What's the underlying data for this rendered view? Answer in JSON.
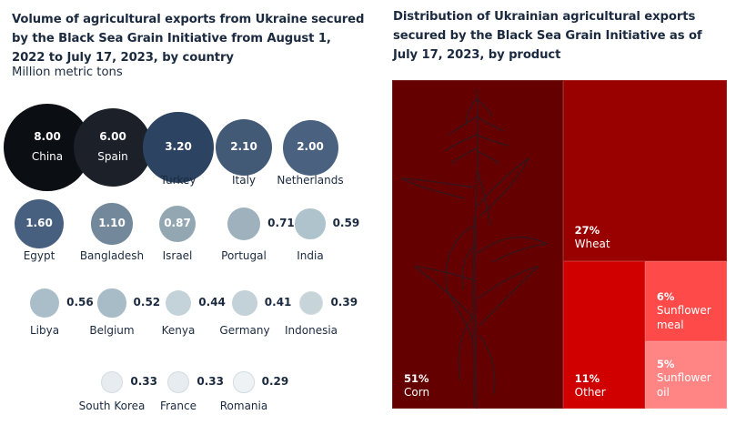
{
  "left_chart": {
    "title": "Volume of agricultural exports from Ukraine secured by the Black Sea Grain Initiative from August 1, 2022 to July 17, 2023, by country",
    "subtitle": "Million metric tons"
  },
  "right_chart": {
    "title": "Distribution of Ukrainian agricultural exports secured by the Black Sea Grain Initiative as of July 17, 2023, by product",
    "decoration": "corn-plant-illustration"
  },
  "chart_data": [
    {
      "type": "bubble",
      "title": "Volume of agricultural exports from Ukraine secured by the Black Sea Grain Initiative from August 1, 2022 to July 17, 2023, by country",
      "subtitle": "Million metric tons",
      "unit": "Million metric tons",
      "points": [
        {
          "country": "China",
          "value": 8.0,
          "value_label": "8.00",
          "color": "#0b0e13"
        },
        {
          "country": "Spain",
          "value": 6.0,
          "value_label": "6.00",
          "color": "#1b2029"
        },
        {
          "country": "Turkey",
          "value": 3.2,
          "value_label": "3.20",
          "color": "#2c4461"
        },
        {
          "country": "Italy",
          "value": 2.1,
          "value_label": "2.10",
          "color": "#435a76"
        },
        {
          "country": "Netherlands",
          "value": 2.0,
          "value_label": "2.00",
          "color": "#4a6180"
        },
        {
          "country": "Egypt",
          "value": 1.6,
          "value_label": "1.60",
          "color": "#48607f"
        },
        {
          "country": "Bangladesh",
          "value": 1.1,
          "value_label": "1.10",
          "color": "#73899b"
        },
        {
          "country": "Israel",
          "value": 0.87,
          "value_label": "0.87",
          "color": "#93a7b3"
        },
        {
          "country": "Portugal",
          "value": 0.71,
          "value_label": "0.71",
          "color": "#9eb1bc"
        },
        {
          "country": "India",
          "value": 0.59,
          "value_label": "0.59",
          "color": "#afc3cc"
        },
        {
          "country": "Libya",
          "value": 0.56,
          "value_label": "0.56",
          "color": "#a9bec8"
        },
        {
          "country": "Belgium",
          "value": 0.52,
          "value_label": "0.52",
          "color": "#a7bcc6"
        },
        {
          "country": "Kenya",
          "value": 0.44,
          "value_label": "0.44",
          "color": "#c4d2d9"
        },
        {
          "country": "Germany",
          "value": 0.41,
          "value_label": "0.41",
          "color": "#c3d1d8"
        },
        {
          "country": "Indonesia",
          "value": 0.39,
          "value_label": "0.39",
          "color": "#c7d4da"
        },
        {
          "country": "South Korea",
          "value": 0.33,
          "value_label": "0.33",
          "color": "#e6ecef"
        },
        {
          "country": "France",
          "value": 0.33,
          "value_label": "0.33",
          "color": "#e6ecef"
        },
        {
          "country": "Romania",
          "value": 0.29,
          "value_label": "0.29",
          "color": "#eef2f4"
        }
      ]
    },
    {
      "type": "treemap",
      "title": "Distribution of Ukrainian agricultural exports secured by the Black Sea Grain Initiative as of July 17, 2023, by product",
      "unit": "percent",
      "items": [
        {
          "product": "Corn",
          "value": 51,
          "label": "51%",
          "color": "#640000"
        },
        {
          "product": "Wheat",
          "value": 27,
          "label": "27%",
          "color": "#990000"
        },
        {
          "product": "Other",
          "value": 11,
          "label": "11%",
          "color": "#d00000"
        },
        {
          "product": "Sunflower meal",
          "value": 6,
          "label": "6%",
          "color": "#ff4a4a"
        },
        {
          "product": "Sunflower oil",
          "value": 5,
          "label": "5%",
          "color": "#ff8585"
        }
      ]
    }
  ]
}
